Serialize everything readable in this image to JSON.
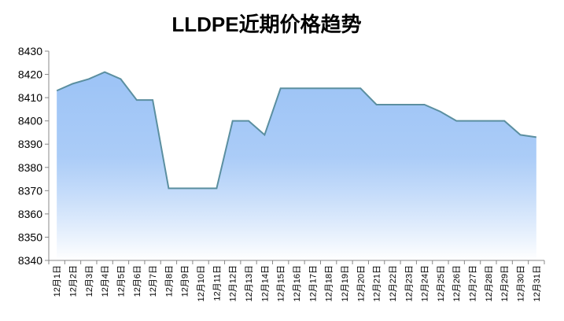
{
  "chart_data": {
    "type": "area",
    "title": "LLDPE近期价格趋势",
    "categories": [
      "12月1日",
      "12月2日",
      "12月3日",
      "12月4日",
      "12月5日",
      "12月6日",
      "12月7日",
      "12月8日",
      "12月9日",
      "12月10日",
      "12月11日",
      "12月12日",
      "12月13日",
      "12月14日",
      "12月15日",
      "12月16日",
      "12月17日",
      "12月18日",
      "12月19日",
      "12月20日",
      "12月21日",
      "12月22日",
      "12月23日",
      "12月24日",
      "12月25日",
      "12月26日",
      "12月27日",
      "12月28日",
      "12月29日",
      "12月30日",
      "12月31日"
    ],
    "values": [
      8413,
      8416,
      8418,
      8421,
      8418,
      8409,
      8409,
      8371,
      8371,
      8371,
      8371,
      8400,
      8400,
      8394,
      8414,
      8414,
      8414,
      8414,
      8414,
      8414,
      8407,
      8407,
      8407,
      8407,
      8404,
      8400,
      8400,
      8400,
      8400,
      8394,
      8393
    ],
    "color": "#5b8fa0",
    "fill_top": "#9cc3f6",
    "fill_bottom": "#ffffff",
    "ylim": [
      8340,
      8430
    ],
    "yticks": [
      8340,
      8350,
      8360,
      8370,
      8380,
      8390,
      8400,
      8410,
      8420,
      8430
    ]
  }
}
